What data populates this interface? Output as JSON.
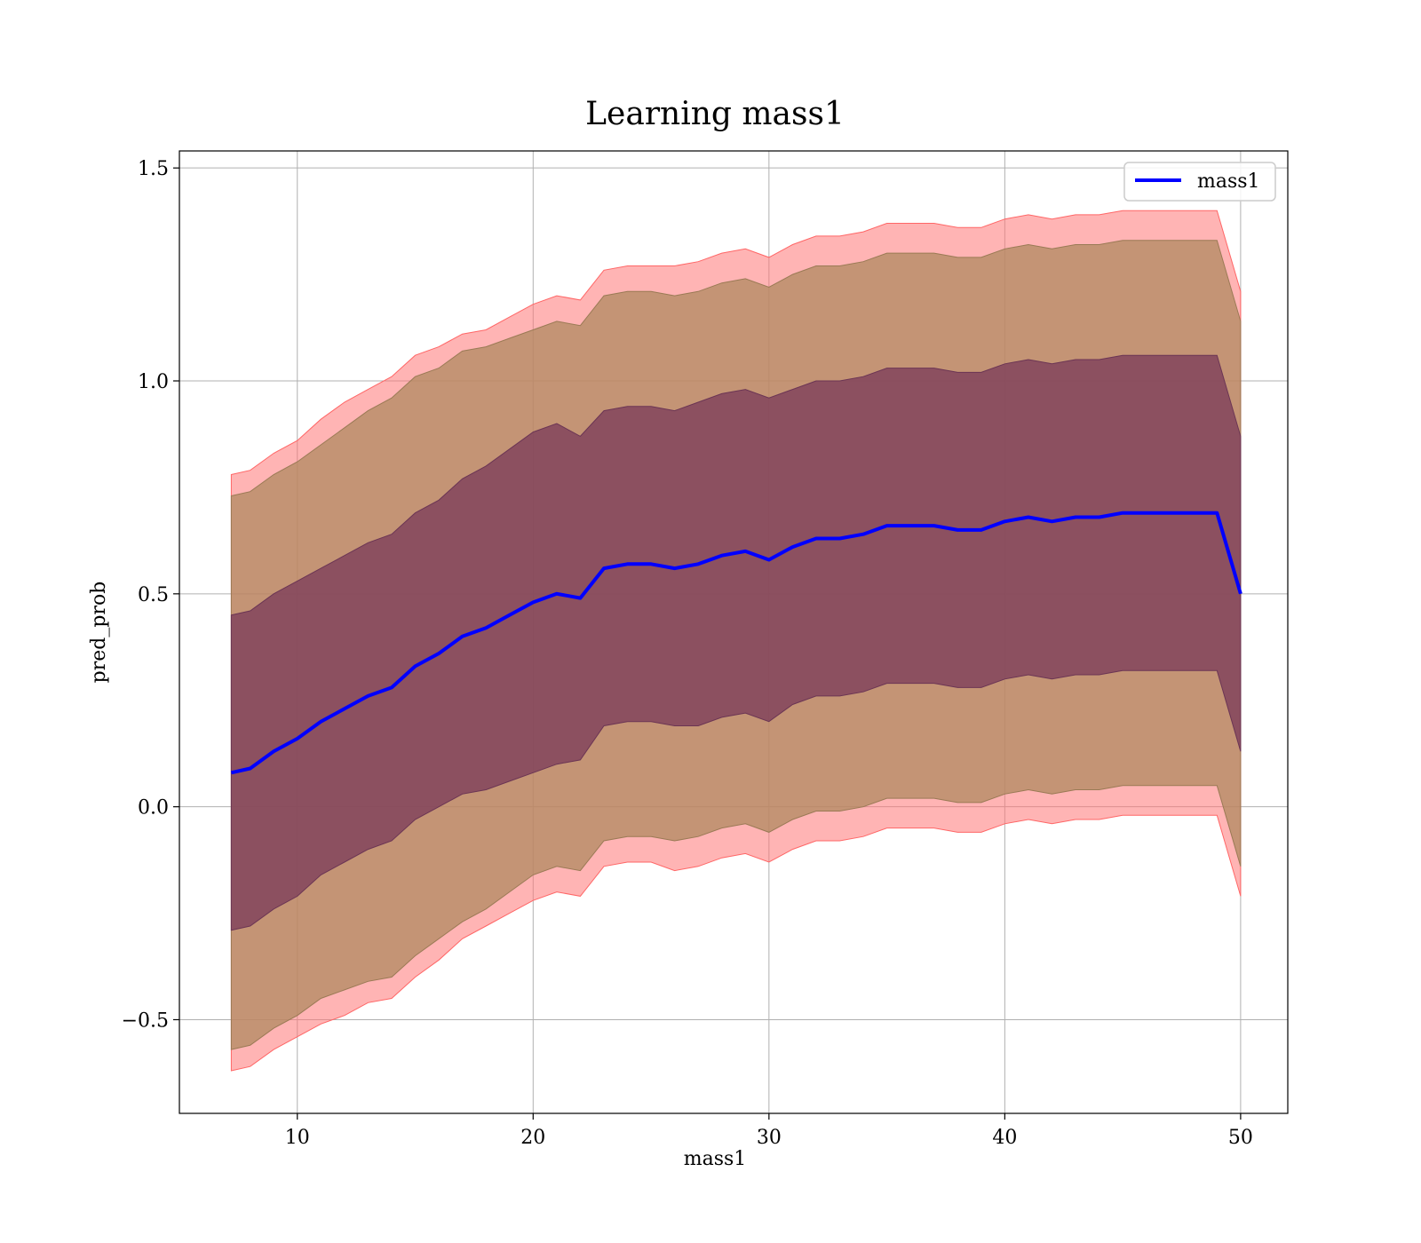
{
  "chart_data": {
    "type": "line",
    "title": "Learning mass1",
    "xlabel": "mass1",
    "ylabel": "pred_prob",
    "xlim": [
      5,
      52
    ],
    "ylim": [
      -0.72,
      1.54
    ],
    "x_ticks": [
      10,
      20,
      30,
      40,
      50
    ],
    "x_tick_labels": [
      "10",
      "20",
      "30",
      "40",
      "50"
    ],
    "y_ticks": [
      -0.5,
      0.0,
      0.5,
      1.0,
      1.5
    ],
    "y_tick_labels": [
      "−0.5",
      "0.0",
      "0.5",
      "1.0",
      "1.5"
    ],
    "grid": true,
    "legend": {
      "position": "top-right",
      "entries": [
        "mass1"
      ]
    },
    "colors": {
      "line": "#0000ff",
      "band_outer": "#ff7777",
      "band_mid": "#b08a60",
      "band_inner": "#7a3a5a"
    },
    "series": [
      {
        "name": "mass1",
        "x": [
          7.2,
          8,
          9,
          10,
          11,
          12,
          13,
          14,
          15,
          16,
          17,
          18,
          19,
          20,
          21,
          22,
          23,
          24,
          25,
          26,
          27,
          28,
          29,
          30,
          31,
          32,
          33,
          34,
          35,
          36,
          37,
          38,
          39,
          40,
          41,
          42,
          43,
          44,
          45,
          46,
          47,
          48,
          49,
          50
        ],
        "y": [
          0.08,
          0.09,
          0.13,
          0.16,
          0.2,
          0.23,
          0.26,
          0.28,
          0.33,
          0.36,
          0.4,
          0.42,
          0.45,
          0.48,
          0.5,
          0.49,
          0.56,
          0.57,
          0.57,
          0.56,
          0.57,
          0.59,
          0.6,
          0.58,
          0.61,
          0.63,
          0.63,
          0.64,
          0.66,
          0.66,
          0.66,
          0.65,
          0.65,
          0.67,
          0.68,
          0.67,
          0.68,
          0.68,
          0.69,
          0.69,
          0.69,
          0.69,
          0.69,
          0.5
        ],
        "band_1sd": [
          0.37,
          0.37,
          0.37,
          0.37,
          0.36,
          0.36,
          0.36,
          0.36,
          0.36,
          0.36,
          0.37,
          0.38,
          0.39,
          0.4,
          0.4,
          0.38,
          0.37,
          0.37,
          0.37,
          0.37,
          0.38,
          0.38,
          0.38,
          0.38,
          0.37,
          0.37,
          0.37,
          0.37,
          0.37,
          0.37,
          0.37,
          0.37,
          0.37,
          0.37,
          0.37,
          0.37,
          0.37,
          0.37,
          0.37,
          0.37,
          0.37,
          0.37,
          0.37,
          0.37
        ],
        "band_2sd": [
          0.65,
          0.65,
          0.65,
          0.65,
          0.65,
          0.66,
          0.67,
          0.68,
          0.68,
          0.67,
          0.67,
          0.66,
          0.65,
          0.64,
          0.64,
          0.64,
          0.64,
          0.64,
          0.64,
          0.64,
          0.64,
          0.64,
          0.64,
          0.64,
          0.64,
          0.64,
          0.64,
          0.64,
          0.64,
          0.64,
          0.64,
          0.64,
          0.64,
          0.64,
          0.64,
          0.64,
          0.64,
          0.64,
          0.64,
          0.64,
          0.64,
          0.64,
          0.64,
          0.64
        ],
        "band_3sd": [
          0.7,
          0.7,
          0.7,
          0.7,
          0.71,
          0.72,
          0.72,
          0.73,
          0.73,
          0.72,
          0.71,
          0.7,
          0.7,
          0.7,
          0.7,
          0.7,
          0.7,
          0.7,
          0.7,
          0.71,
          0.71,
          0.71,
          0.71,
          0.71,
          0.71,
          0.71,
          0.71,
          0.71,
          0.71,
          0.71,
          0.71,
          0.71,
          0.71,
          0.71,
          0.71,
          0.71,
          0.71,
          0.71,
          0.71,
          0.71,
          0.71,
          0.71,
          0.71,
          0.71
        ]
      }
    ]
  }
}
